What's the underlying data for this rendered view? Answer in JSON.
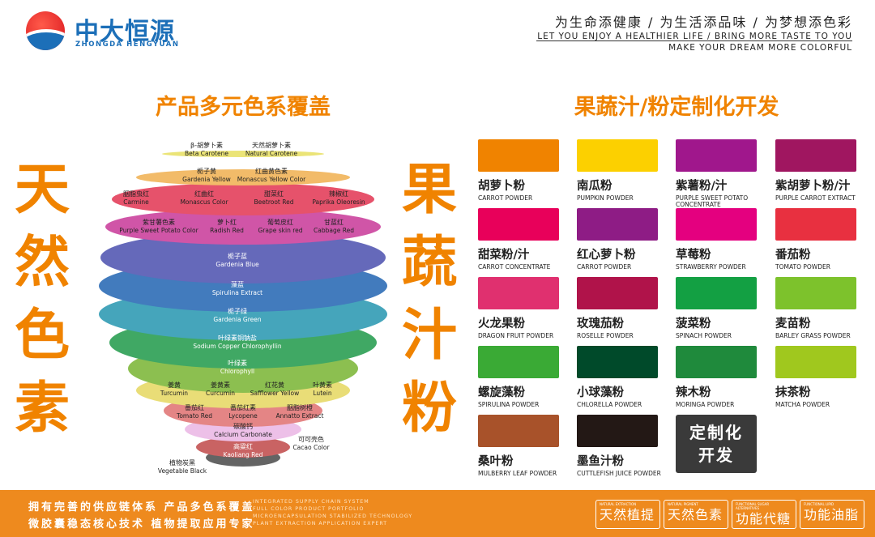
{
  "header": {
    "logo_cn": "中大恒源",
    "logo_en": "ZHONGDA HENGYUAN",
    "slogan_cn": "为生命添健康 / 为生活添品味 / 为梦想添色彩",
    "slogan_en1": "LET YOU ENJOY A HEALTHIER LIFE / BRING MORE TASTE TO YOU",
    "slogan_en2": "MAKE YOUR DREAM MORE COLORFUL"
  },
  "left": {
    "title": "产品多元色系覆盖",
    "vertical": [
      "天",
      "然",
      "色",
      "素"
    ],
    "labels": [
      {
        "cn": "β-胡萝卜素",
        "en": "Beta Carotene"
      },
      {
        "cn": "天然胡萝卜素",
        "en": "Natural Carotene"
      },
      {
        "cn": "栀子黄",
        "en": "Gardenia Yellow"
      },
      {
        "cn": "红曲黄色素",
        "en": "Monascus Yellow Color"
      },
      {
        "cn": "胭脂虫红",
        "en": "Carmine"
      },
      {
        "cn": "红曲红",
        "en": "Monascus  Color"
      },
      {
        "cn": "甜菜红",
        "en": "Beetroot Red"
      },
      {
        "cn": "辣椒红",
        "en": "Paprika Oleoresin"
      },
      {
        "cn": "紫甘薯色素",
        "en": "Purple Sweet Potato Color"
      },
      {
        "cn": "萝卜红",
        "en": "Radish Red"
      },
      {
        "cn": "葡萄皮红",
        "en": "Grape skin red"
      },
      {
        "cn": "甘蓝红",
        "en": "Cabbage Red"
      },
      {
        "cn": "栀子蓝",
        "en": "Gardenia Blue"
      },
      {
        "cn": "藻蓝",
        "en": "Spirulina Extract"
      },
      {
        "cn": "栀子绿",
        "en": "Gardenia Green"
      },
      {
        "cn": "叶绿素铜钠盐",
        "en": "Sodium Copper Chlorophyllin"
      },
      {
        "cn": "叶绿素",
        "en": "Chlorophyll"
      },
      {
        "cn": "姜黄",
        "en": "Turcumin"
      },
      {
        "cn": "姜黄素",
        "en": "Curcumin"
      },
      {
        "cn": "红花黄",
        "en": "Safflower Yellow"
      },
      {
        "cn": "叶黄素",
        "en": "Lutein"
      },
      {
        "cn": "番茄红",
        "en": "Tomato Red"
      },
      {
        "cn": "番茄红素",
        "en": "Lycopene"
      },
      {
        "cn": "胭脂树橙",
        "en": "Annatto Extract"
      },
      {
        "cn": "碳酸钙",
        "en": "Calcium Carbonate"
      },
      {
        "cn": "可可壳色",
        "en": "Cacao Color"
      },
      {
        "cn": "高粱红",
        "en": "Kaoliang Red"
      },
      {
        "cn": "植物炭黑",
        "en": "Vegetable Black"
      }
    ]
  },
  "right": {
    "title": "果蔬汁/粉定制化开发",
    "vertical": [
      "果",
      "蔬",
      "汁",
      "粉"
    ],
    "products": [
      {
        "cn": "胡萝卜粉",
        "en": "CARROT POWDER",
        "color": "#f08300"
      },
      {
        "cn": "南瓜粉",
        "en": "PUMPKIN POWDER",
        "color": "#fcd000"
      },
      {
        "cn": "紫薯粉/汁",
        "en": "PURPLE SWEET POTATO CONCENTRATE",
        "color": "#a0178c"
      },
      {
        "cn": "紫胡萝卜粉/汁",
        "en": "PURPLE CARROT EXTRACT",
        "color": "#a01660"
      },
      {
        "cn": "甜菜粉/汁",
        "en": "CARROT CONCENTRATE",
        "color": "#e8005a"
      },
      {
        "cn": "红心萝卜粉",
        "en": "CARROT POWDER",
        "color": "#8e1c85"
      },
      {
        "cn": "草莓粉",
        "en": "STRAWBERRY POWDER",
        "color": "#e4007f"
      },
      {
        "cn": "番茄粉",
        "en": "TOMATO POWDER",
        "color": "#e83040"
      },
      {
        "cn": "火龙果粉",
        "en": "DRAGON FRUIT POWDER",
        "color": "#e0306f"
      },
      {
        "cn": "玫瑰茄粉",
        "en": "ROSELLE POWDER",
        "color": "#b0134a"
      },
      {
        "cn": "菠菜粉",
        "en": "SPINACH POWDER",
        "color": "#13a043"
      },
      {
        "cn": "麦苗粉",
        "en": "BARLEY GRASS POWDER",
        "color": "#7dc22c"
      },
      {
        "cn": "螺旋藻粉",
        "en": "SPIRULINA POWDER",
        "color": "#3aaa35"
      },
      {
        "cn": "小球藻粉",
        "en": "CHLORELLA POWDER",
        "color": "#004a2a"
      },
      {
        "cn": "辣木粉",
        "en": "MORINGA POWDER",
        "color": "#1f8a3c"
      },
      {
        "cn": "抹茶粉",
        "en": "MATCHA POWDER",
        "color": "#a0c81e"
      },
      {
        "cn": "桑叶粉",
        "en": "MULBERRY LEAF POWDER",
        "color": "#a8522a"
      },
      {
        "cn": "墨鱼汁粉",
        "en": "CUTTLEFISH JUICE POWDER",
        "color": "#231815"
      }
    ],
    "custom_line1": "定制化",
    "custom_line2": "开发"
  },
  "footer": {
    "cn1": "拥有完善的供应链体系  产品多色系覆盖",
    "cn2": "微胶囊稳态核心技术  植物提取应用专家",
    "en": [
      "INTEGRATED SUPPLY CHAIN SYSTEM",
      "FULL COLOR PRODUCT PORTFOLIO",
      "MICROENCAPSULATION STABILIZED TECHNOLOGY",
      "PLANT EXTRACTION APPLICATION EXPERT"
    ],
    "badges": [
      {
        "en": "NATURAL EXTRACTION",
        "cn": "天然植提"
      },
      {
        "en": "NATURAL PIGMENT",
        "cn": "天然色素"
      },
      {
        "en": "FUNCTIONAL SUGAR ALTERNATIVES",
        "cn": "功能代糖"
      },
      {
        "en": "FUNCTIONAL LIPID",
        "cn": "功能油脂"
      }
    ]
  },
  "colors": {
    "accent": "#f08300",
    "brand_blue": "#1c6fb8",
    "footer": "#ee8a1e"
  }
}
